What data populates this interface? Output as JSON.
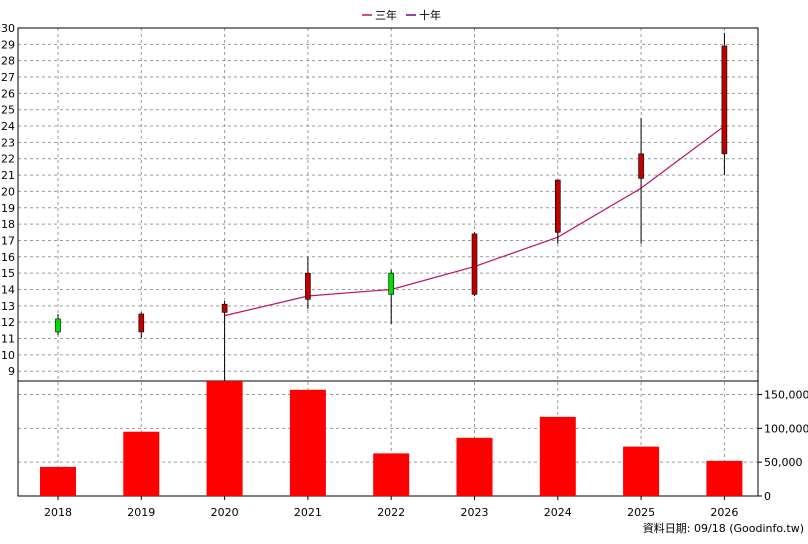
{
  "source_note": "資料日期: 09/18 (Goodinfo.tw)",
  "colors": {
    "up": "#c00000",
    "down": "#00e000",
    "volume": "#ff0000",
    "ma3": "#c0106a",
    "ma10": "#6a0a8a",
    "grid": "#9a9a9a"
  },
  "chart_data": [
    {
      "type": "candlestick",
      "legend_position": "top-center",
      "legend": [
        {
          "label": "三年",
          "color": "#c0106a"
        },
        {
          "label": "十年",
          "color": "#6a0a8a"
        }
      ],
      "categories": [
        "2018",
        "2019",
        "2020",
        "2021",
        "2022",
        "2023",
        "2024",
        "2025",
        "2026"
      ],
      "ylim": [
        8.4,
        30
      ],
      "yticks": [
        9,
        10,
        11,
        12,
        13,
        14,
        15,
        16,
        17,
        18,
        19,
        20,
        21,
        22,
        23,
        24,
        25,
        26,
        27,
        28,
        29,
        30
      ],
      "grid": true,
      "candles": [
        {
          "year": "2018",
          "open": 12.2,
          "close": 11.4,
          "high": 12.5,
          "low": 11.2
        },
        {
          "year": "2019",
          "open": 11.4,
          "close": 12.5,
          "high": 12.6,
          "low": 11.0
        },
        {
          "year": "2020",
          "open": 12.6,
          "close": 13.1,
          "high": 13.3,
          "low": 8.4
        },
        {
          "year": "2021",
          "open": 13.4,
          "close": 15.0,
          "high": 16.0,
          "low": 12.8
        },
        {
          "year": "2022",
          "open": 15.0,
          "close": 13.7,
          "high": 15.2,
          "low": 11.9
        },
        {
          "year": "2023",
          "open": 13.7,
          "close": 17.4,
          "high": 17.5,
          "low": 13.6
        },
        {
          "year": "2024",
          "open": 17.5,
          "close": 20.7,
          "high": 20.7,
          "low": 16.8
        },
        {
          "year": "2025",
          "open": 20.8,
          "close": 22.3,
          "high": 24.5,
          "low": 16.8
        },
        {
          "year": "2026",
          "open": 22.3,
          "close": 28.9,
          "high": 29.7,
          "low": 21.0
        }
      ],
      "series": [
        {
          "name": "三年",
          "points": [
            {
              "x": "2020",
              "y": 12.4
            },
            {
              "x": "2021",
              "y": 13.6
            },
            {
              "x": "2022",
              "y": 14.0
            },
            {
              "x": "2023",
              "y": 15.4
            },
            {
              "x": "2024",
              "y": 17.2
            },
            {
              "x": "2025",
              "y": 20.2
            },
            {
              "x": "2026",
              "y": 24.0
            }
          ]
        }
      ]
    },
    {
      "type": "bar",
      "categories": [
        "2018",
        "2019",
        "2020",
        "2021",
        "2022",
        "2023",
        "2024",
        "2025",
        "2026"
      ],
      "values": [
        43000,
        95000,
        175000,
        157000,
        63000,
        86000,
        117000,
        73000,
        52000
      ],
      "ylim": [
        0,
        170000
      ],
      "yticks": [
        0,
        50000,
        100000,
        150000
      ],
      "ytick_labels": [
        "0",
        "50,000",
        "100,000",
        "150,000"
      ],
      "grid": true
    }
  ]
}
